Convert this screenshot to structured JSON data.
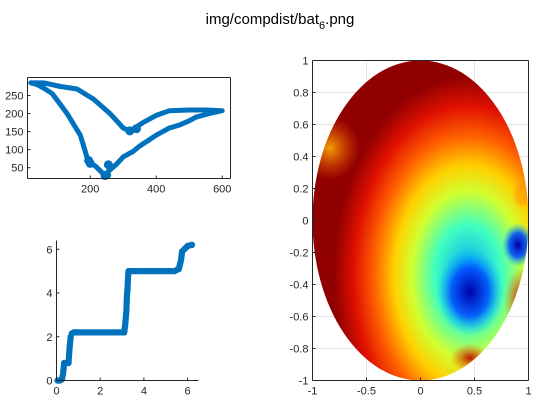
{
  "figure": {
    "title_main": "img/compdist/bat",
    "title_sub": "6",
    "title_ext": ".png"
  },
  "colors": {
    "marker": "#0072BD",
    "axis": "#262626",
    "grid": "#e6e6e6"
  },
  "chart_data": [
    {
      "type": "scatter",
      "panel": "top-left",
      "xlim": [
        10,
        625
      ],
      "ylim": [
        20,
        300
      ],
      "xticks": [
        "200",
        "400",
        "600"
      ],
      "yticks": [
        "50",
        "100",
        "150",
        "200",
        "250"
      ],
      "outline": [
        [
          20,
          285
        ],
        [
          60,
          285
        ],
        [
          110,
          275
        ],
        [
          160,
          268
        ],
        [
          210,
          240
        ],
        [
          260,
          200
        ],
        [
          300,
          160
        ],
        [
          320,
          152
        ],
        [
          335,
          160
        ],
        [
          360,
          175
        ],
        [
          400,
          195
        ],
        [
          440,
          208
        ],
        [
          500,
          210
        ],
        [
          550,
          210
        ],
        [
          600,
          208
        ],
        [
          560,
          200
        ],
        [
          520,
          190
        ],
        [
          500,
          180
        ],
        [
          470,
          168
        ],
        [
          440,
          160
        ],
        [
          420,
          150
        ],
        [
          400,
          140
        ],
        [
          375,
          125
        ],
        [
          350,
          110
        ],
        [
          330,
          95
        ],
        [
          300,
          80
        ],
        [
          280,
          60
        ],
        [
          255,
          40
        ],
        [
          245,
          28
        ],
        [
          232,
          40
        ],
        [
          215,
          55
        ],
        [
          200,
          62
        ],
        [
          190,
          80
        ],
        [
          180,
          110
        ],
        [
          170,
          140
        ],
        [
          150,
          170
        ],
        [
          130,
          200
        ],
        [
          110,
          225
        ],
        [
          85,
          255
        ],
        [
          60,
          270
        ],
        [
          40,
          280
        ],
        [
          20,
          285
        ]
      ],
      "dots": [
        [
          200,
          62
        ],
        [
          195,
          70
        ],
        [
          245,
          28
        ],
        [
          250,
          30
        ],
        [
          255,
          58
        ],
        [
          320,
          152
        ],
        [
          340,
          158
        ]
      ]
    },
    {
      "type": "scatter",
      "panel": "bottom-left",
      "xlim": [
        0,
        6.5
      ],
      "ylim": [
        0,
        6.4
      ],
      "xticks": [
        "0",
        "2",
        "4",
        "6"
      ],
      "yticks": [
        "0",
        "2",
        "4",
        "6"
      ],
      "points": [
        [
          0.05,
          0
        ],
        [
          0.15,
          0
        ],
        [
          0.25,
          0.05
        ],
        [
          0.3,
          0.3
        ],
        [
          0.35,
          0.8
        ],
        [
          0.45,
          0.8
        ],
        [
          0.55,
          0.8
        ],
        [
          0.6,
          1.5
        ],
        [
          0.65,
          2.0
        ],
        [
          0.7,
          2.15
        ],
        [
          0.8,
          2.2
        ],
        [
          1.0,
          2.2
        ],
        [
          1.5,
          2.2
        ],
        [
          2.0,
          2.2
        ],
        [
          2.5,
          2.2
        ],
        [
          3.0,
          2.2
        ],
        [
          3.1,
          2.2
        ],
        [
          3.15,
          2.6
        ],
        [
          3.2,
          3.2
        ],
        [
          3.22,
          3.8
        ],
        [
          3.25,
          4.2
        ],
        [
          3.28,
          4.8
        ],
        [
          3.3,
          5.0
        ],
        [
          3.4,
          5.0
        ],
        [
          3.6,
          5.0
        ],
        [
          4.0,
          5.0
        ],
        [
          4.5,
          5.0
        ],
        [
          5.0,
          5.0
        ],
        [
          5.4,
          5.0
        ],
        [
          5.6,
          5.1
        ],
        [
          5.7,
          5.5
        ],
        [
          5.75,
          5.9
        ],
        [
          5.85,
          6.0
        ],
        [
          6.0,
          6.15
        ],
        [
          6.2,
          6.2
        ]
      ]
    },
    {
      "type": "heatmap",
      "panel": "right",
      "xlim": [
        -1,
        1
      ],
      "ylim": [
        -1,
        1
      ],
      "xticks": [
        "-1",
        "-0.5",
        "0",
        "0.5",
        "1"
      ],
      "yticks": [
        "-1",
        "-0.8",
        "-0.6",
        "-0.4",
        "-0.2",
        "0",
        "0.2",
        "0.4",
        "0.6",
        "0.8",
        "1"
      ],
      "colormap": "jet",
      "grid": true
    }
  ]
}
